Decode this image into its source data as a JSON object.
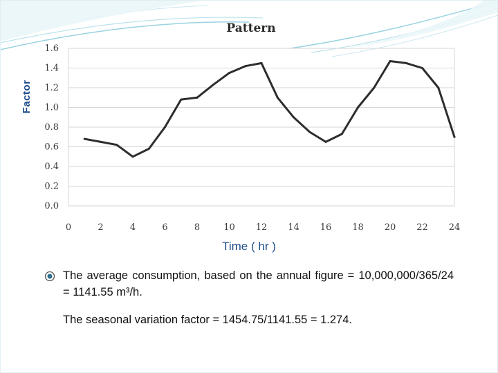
{
  "colors": {
    "accent": "#1f4e8c",
    "line": "#2d2d2d",
    "grid": "#d6d6d6",
    "decor": "#7fc7d9"
  },
  "chart_data": {
    "type": "line",
    "title": "Pattern",
    "xlabel": "Time ( hr )",
    "ylabel": "Factor",
    "xlim": [
      0,
      24
    ],
    "ylim": [
      0,
      1.6
    ],
    "x_ticks": [
      "0",
      "2",
      "4",
      "6",
      "8",
      "10",
      "12",
      "14",
      "16",
      "18",
      "20",
      "22",
      "24"
    ],
    "y_ticks": [
      "0.0",
      "0.2",
      "0.4",
      "0.6",
      "0.8",
      "1.0",
      "1.2",
      "1.4",
      "1.6"
    ],
    "grid": true,
    "series": [
      {
        "x": [
          1,
          2,
          3,
          4,
          5,
          6,
          7,
          8,
          9,
          10,
          11,
          12,
          13,
          14,
          15,
          16,
          17,
          18,
          19,
          20,
          21,
          22,
          23,
          24
        ],
        "values": [
          0.68,
          0.65,
          0.62,
          0.5,
          0.58,
          0.8,
          1.08,
          1.1,
          1.23,
          1.35,
          1.42,
          1.45,
          1.1,
          0.9,
          0.75,
          0.65,
          0.73,
          1.0,
          1.2,
          1.47,
          1.45,
          1.4,
          1.2,
          0.7
        ]
      }
    ]
  },
  "notes": {
    "bullet_text": "The average consumption, based on the annual figure = 10,000,000/365/24 = 1141.55 m³/h.",
    "second_text": "The seasonal variation factor = 1454.75/1141.55  = 1.274."
  }
}
